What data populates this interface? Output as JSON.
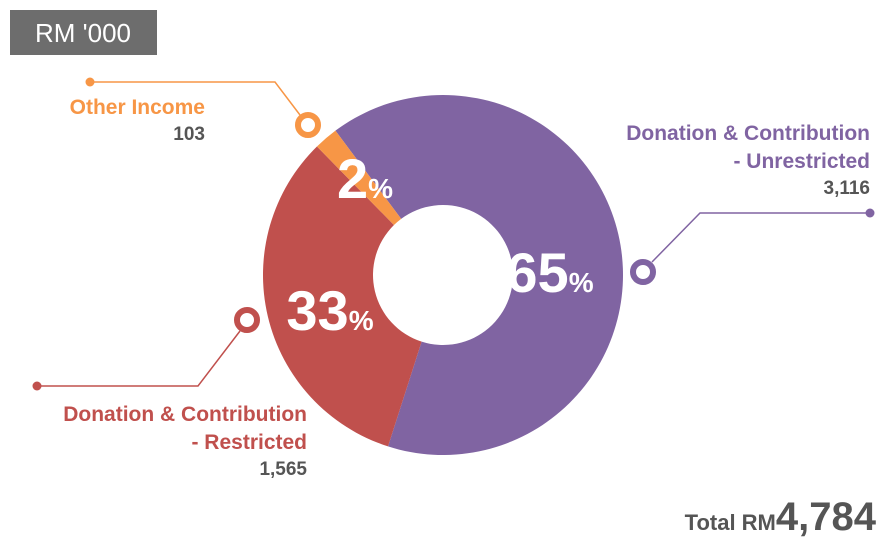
{
  "unit_label": "RM '000",
  "chart_data": {
    "type": "pie",
    "donut": true,
    "percent_symbol": "%",
    "series": [
      {
        "label": [
          "Donation & Contribution",
          "- Unrestricted"
        ],
        "color": "#8064a2",
        "value": 3116,
        "value_label": "3,116",
        "percent": 65
      },
      {
        "label": [
          "Donation & Contribution",
          "- Restricted"
        ],
        "color": "#c0504d",
        "value": 1565,
        "value_label": "1,565",
        "percent": 33
      },
      {
        "label": [
          "Other Income"
        ],
        "color": "#f79646",
        "value": 103,
        "percent": 2
      }
    ],
    "total_prefix": "Total RM",
    "total": {
      "value": 4784,
      "label": "4,784"
    }
  }
}
